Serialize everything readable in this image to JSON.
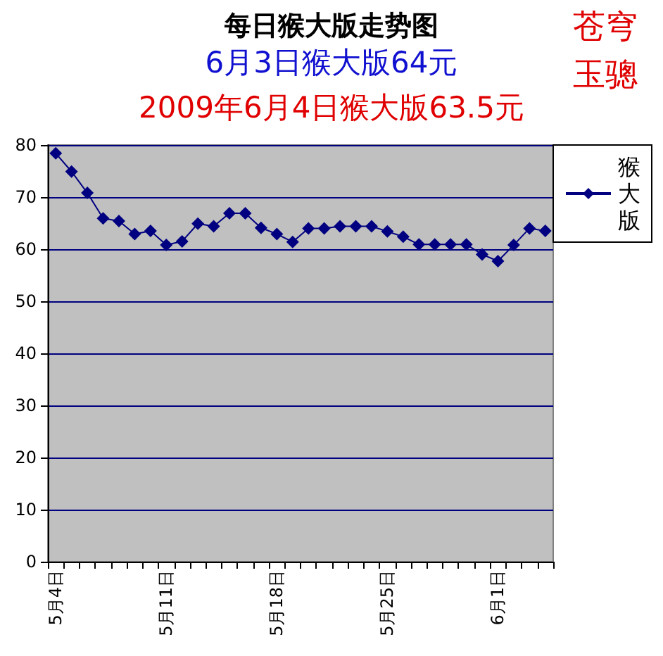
{
  "chart_data": {
    "type": "line",
    "title": "每日猴大版走势图",
    "subtitle": "6月3日猴大版64元",
    "annotations": [
      "2009年6月4日猴大版63.5元",
      "苍穹",
      "玉骢"
    ],
    "categories": [
      "5月4日",
      null,
      null,
      null,
      null,
      null,
      null,
      "5月11日",
      null,
      null,
      null,
      null,
      null,
      null,
      "5月18日",
      null,
      null,
      null,
      null,
      null,
      null,
      "5月25日",
      null,
      null,
      null,
      null,
      null,
      null,
      "6月1日",
      null,
      null,
      null
    ],
    "series": [
      {
        "name": "猴大版",
        "color": "#000080",
        "values": [
          78.4,
          74.9,
          70.8,
          65.9,
          65.4,
          62.9,
          63.5,
          60.8,
          61.5,
          64.9,
          64.4,
          66.9,
          66.9,
          64.1,
          62.9,
          61.4,
          64.0,
          64.0,
          64.4,
          64.4,
          64.4,
          63.4,
          62.4,
          60.9,
          60.9,
          60.9,
          60.9,
          59.0,
          57.7,
          60.8,
          64,
          63.5
        ]
      }
    ],
    "ylim": [
      0,
      80
    ],
    "yticks": [
      0,
      10,
      20,
      30,
      40,
      50,
      60,
      70,
      80
    ],
    "grid": "y",
    "legend": "right",
    "marker": "diamond",
    "line_style": "solid"
  }
}
